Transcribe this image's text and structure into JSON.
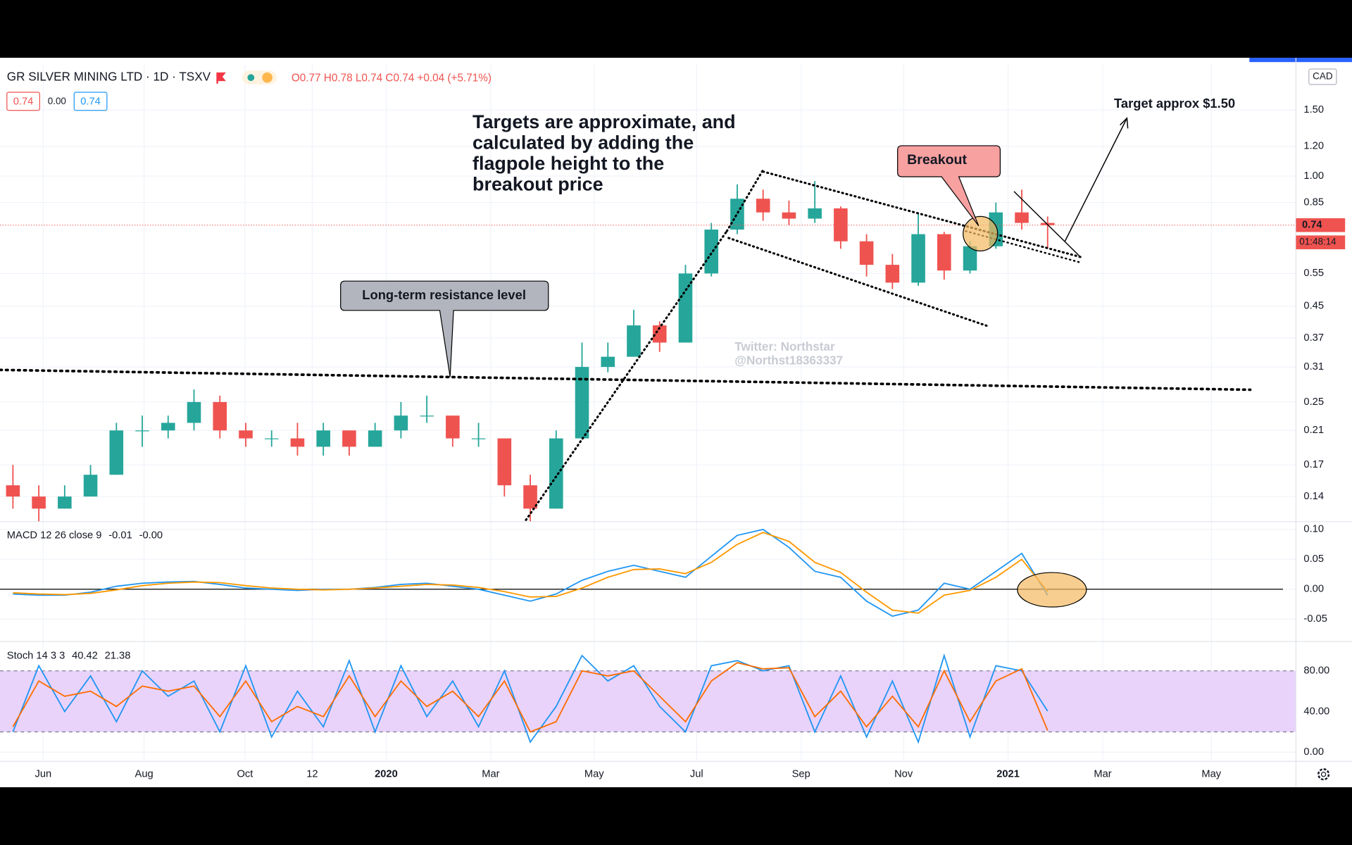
{
  "header": {
    "symbol": "GR SILVER MINING LTD · 1D · TSXV",
    "ohlc": "O0.77 H0.78 L0.74 C0.74 +0.04 (+5.71%)",
    "bid": "0.74",
    "spread": "0.00",
    "ask": "0.74",
    "currency": "CAD"
  },
  "annotations": {
    "targets_note": [
      "Targets are approximate, and",
      "calculated by adding the",
      "flagpole height to the",
      "breakout price"
    ],
    "target": "Target approx $1.50",
    "breakout": "Breakout",
    "resistance": "Long-term resistance level",
    "watermark": [
      "Twitter: Northstar",
      "@Northst18363337"
    ]
  },
  "chart_data": [
    {
      "type": "candlestick",
      "log_scale": true,
      "grid": true,
      "categories": [
        null,
        null,
        null,
        null,
        null,
        null,
        null,
        null,
        null,
        null,
        null,
        null,
        null,
        null,
        null,
        null,
        null,
        null,
        null,
        null,
        null,
        null,
        null,
        null,
        null,
        null,
        null,
        null,
        null,
        null,
        null,
        null,
        null,
        null,
        null,
        null,
        null,
        null,
        null,
        null,
        null
      ],
      "open": [
        0.15,
        0.14,
        0.13,
        0.14,
        0.16,
        0.21,
        0.21,
        0.22,
        0.25,
        0.21,
        0.2,
        0.2,
        0.19,
        0.21,
        0.19,
        0.21,
        0.23,
        0.23,
        0.2,
        0.2,
        0.15,
        0.13,
        0.2,
        0.31,
        0.33,
        0.4,
        0.36,
        0.55,
        0.72,
        0.87,
        0.8,
        0.77,
        0.82,
        0.67,
        0.58,
        0.52,
        0.7,
        0.56,
        0.65,
        0.8,
        0.75
      ],
      "high": [
        0.17,
        0.15,
        0.15,
        0.17,
        0.22,
        0.23,
        0.23,
        0.27,
        0.26,
        0.22,
        0.21,
        0.22,
        0.22,
        0.21,
        0.22,
        0.25,
        0.26,
        0.23,
        0.22,
        0.2,
        0.16,
        0.21,
        0.36,
        0.36,
        0.44,
        0.41,
        0.58,
        0.75,
        0.95,
        0.92,
        0.86,
        0.97,
        0.83,
        0.7,
        0.62,
        0.8,
        0.71,
        0.67,
        0.85,
        0.92,
        0.78
      ],
      "low": [
        0.13,
        0.12,
        0.13,
        0.14,
        0.16,
        0.19,
        0.2,
        0.21,
        0.2,
        0.19,
        0.19,
        0.18,
        0.18,
        0.18,
        0.19,
        0.2,
        0.22,
        0.19,
        0.19,
        0.14,
        0.12,
        0.13,
        0.2,
        0.3,
        0.33,
        0.34,
        0.36,
        0.54,
        0.7,
        0.76,
        0.74,
        0.75,
        0.64,
        0.54,
        0.5,
        0.51,
        0.53,
        0.55,
        0.64,
        0.72,
        0.64
      ],
      "close": [
        0.14,
        0.13,
        0.14,
        0.16,
        0.21,
        0.21,
        0.22,
        0.25,
        0.21,
        0.2,
        0.2,
        0.19,
        0.21,
        0.19,
        0.21,
        0.23,
        0.23,
        0.2,
        0.2,
        0.15,
        0.13,
        0.2,
        0.31,
        0.33,
        0.4,
        0.36,
        0.55,
        0.72,
        0.87,
        0.8,
        0.77,
        0.82,
        0.67,
        0.58,
        0.52,
        0.7,
        0.56,
        0.65,
        0.8,
        0.75,
        0.74
      ],
      "up_color": "#26a69a",
      "down_color": "#ef5350",
      "xlim": [
        -0.5,
        49.6
      ],
      "xticks": [
        {
          "value": 1.17,
          "label": "Jun"
        },
        {
          "value": 5.07,
          "label": "Aug"
        },
        {
          "value": 8.97,
          "label": "Oct"
        },
        {
          "value": 11.57,
          "label": "12"
        },
        {
          "value": 14.43,
          "label": "2020"
        },
        {
          "value": 18.47,
          "label": "Mar"
        },
        {
          "value": 22.47,
          "label": "May"
        },
        {
          "value": 26.43,
          "label": "Jul"
        },
        {
          "value": 30.47,
          "label": "Sep"
        },
        {
          "value": 34.43,
          "label": "Nov"
        },
        {
          "value": 38.47,
          "label": "2021"
        },
        {
          "value": 42.13,
          "label": "Mar"
        },
        {
          "value": 46.33,
          "label": "May"
        }
      ],
      "ylim": [
        0.12,
        1.98
      ],
      "yticks": [
        0.14,
        0.17,
        0.21,
        0.25,
        0.31,
        0.37,
        0.45,
        0.55,
        0.85,
        {
          "value": 1,
          "label": "1.00"
        },
        {
          "value": 1.2,
          "label": "1.20"
        },
        {
          "value": 1.5,
          "label": "1.50"
        }
      ],
      "last": {
        "value": 0.74,
        "label": "0.74"
      },
      "countdown": "01:48:14",
      "last_color": "#ef5350"
    },
    {
      "type": "line",
      "title": "MACD 12 26 close 9",
      "legend_values": [
        "-0.01",
        "-0.00"
      ],
      "zero_line": 0,
      "grid": true,
      "series": [
        {
          "color": "#2196f3",
          "values": [
            -0.008,
            -0.01,
            -0.01,
            -0.005,
            0.005,
            0.01,
            0.012,
            0.013,
            0.008,
            0.002,
            0.0,
            -0.002,
            0.0,
            0.0,
            0.003,
            0.008,
            0.01,
            0.005,
            0.0,
            -0.01,
            -0.02,
            -0.008,
            0.015,
            0.03,
            0.04,
            0.03,
            0.02,
            0.055,
            0.09,
            0.1,
            0.07,
            0.03,
            0.02,
            -0.02,
            -0.045,
            -0.035,
            0.01,
            0.0,
            0.03,
            0.06,
            -0.01
          ]
        },
        {
          "color": "#ff9800",
          "values": [
            -0.006,
            -0.008,
            -0.009,
            -0.007,
            -0.001,
            0.006,
            0.01,
            0.012,
            0.011,
            0.006,
            0.002,
            0.0,
            -0.001,
            0.0,
            0.002,
            0.005,
            0.008,
            0.007,
            0.003,
            -0.004,
            -0.013,
            -0.012,
            0.002,
            0.02,
            0.033,
            0.034,
            0.026,
            0.045,
            0.075,
            0.095,
            0.08,
            0.045,
            0.028,
            -0.005,
            -0.035,
            -0.04,
            -0.01,
            -0.002,
            0.02,
            0.05,
            -0.004
          ]
        }
      ],
      "ylim": [
        -0.086,
        0.113
      ],
      "yticks": [
        -0.05,
        {
          "value": 0,
          "label": "0.00"
        },
        0.05,
        {
          "value": 0.1,
          "label": "0.10"
        }
      ]
    },
    {
      "type": "line",
      "title": "Stoch 14 3 3",
      "legend_values": [
        "40.42",
        "21.38"
      ],
      "band": [
        20,
        80
      ],
      "band_color": "#e9d3fb",
      "grid": true,
      "series": [
        {
          "color": "#2196f3",
          "values": [
            20,
            85,
            40,
            75,
            30,
            80,
            55,
            70,
            20,
            85,
            15,
            60,
            25,
            90,
            20,
            85,
            35,
            70,
            25,
            80,
            10,
            45,
            95,
            70,
            85,
            45,
            20,
            85,
            90,
            80,
            85,
            20,
            75,
            15,
            70,
            10,
            95,
            15,
            85,
            80,
            40.42
          ]
        },
        {
          "color": "#ff6d00",
          "values": [
            25,
            70,
            55,
            60,
            45,
            65,
            60,
            65,
            35,
            70,
            30,
            45,
            35,
            75,
            35,
            70,
            45,
            60,
            35,
            70,
            20,
            30,
            80,
            75,
            80,
            55,
            30,
            70,
            88,
            82,
            83,
            35,
            60,
            25,
            55,
            25,
            80,
            30,
            70,
            82,
            21.38
          ]
        }
      ],
      "ylim": [
        -9,
        108
      ],
      "yticks": [
        {
          "value": 0,
          "label": "0.00"
        },
        {
          "value": 40,
          "label": "40.00"
        },
        {
          "value": 80,
          "label": "80.00"
        }
      ]
    }
  ]
}
